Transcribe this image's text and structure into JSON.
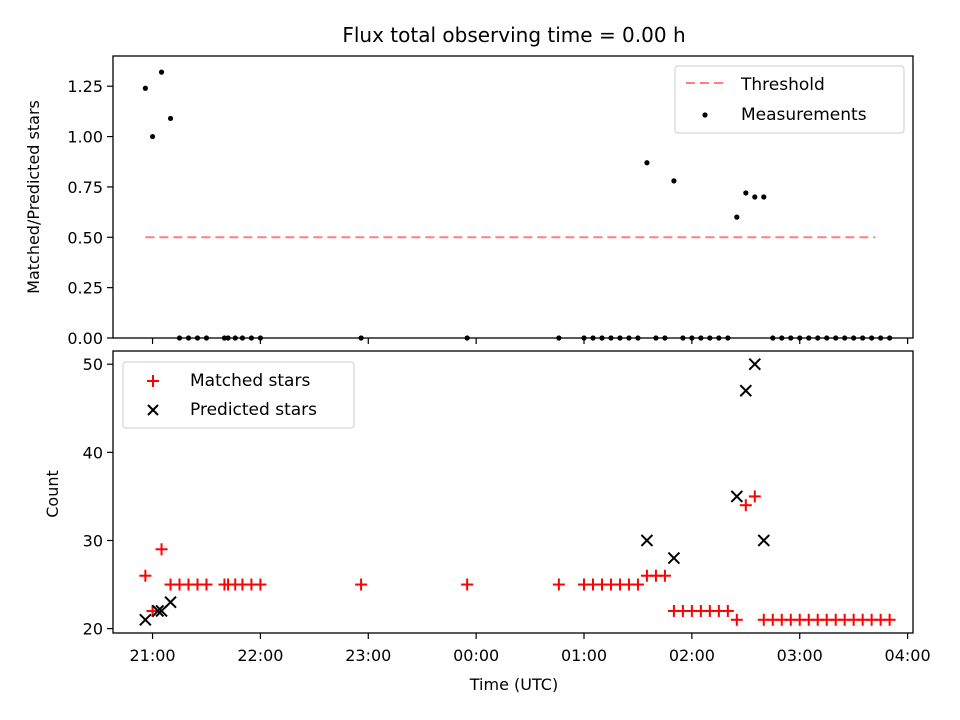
{
  "chart_data": [
    {
      "type": "scatter",
      "title": "Flux total observing time = 0.00 h",
      "xlabel": "",
      "ylabel": "Matched/Predicted stars",
      "ylim": [
        0,
        1.4
      ],
      "yticks": [
        0.0,
        0.25,
        0.5,
        0.75,
        1.0,
        1.25
      ],
      "ytick_labels": [
        "0.00",
        "0.25",
        "0.50",
        "0.75",
        "1.00",
        "1.25"
      ],
      "grid": false,
      "legend_position": "top-right",
      "threshold": {
        "name": "Threshold",
        "value": 0.5,
        "x_range": [
          "20:56",
          "03:42"
        ],
        "color": "#ff7f7f"
      },
      "series": [
        {
          "name": "Measurements",
          "color": "#000000",
          "x": [
            "20:56",
            "21:00",
            "21:05",
            "21:10",
            "21:15",
            "21:20",
            "21:25",
            "21:30",
            "21:40",
            "21:42",
            "21:46",
            "21:50",
            "21:55",
            "22:00",
            "22:56",
            "23:55",
            "00:46",
            "01:00",
            "01:05",
            "01:10",
            "01:15",
            "01:20",
            "01:25",
            "01:30",
            "01:35",
            "01:40",
            "01:45",
            "01:50",
            "01:55",
            "02:00",
            "02:05",
            "02:10",
            "02:15",
            "02:20",
            "02:25",
            "02:30",
            "02:35",
            "02:40",
            "02:45",
            "02:50",
            "02:55",
            "03:00",
            "03:05",
            "03:10",
            "03:15",
            "03:20",
            "03:25",
            "03:30",
            "03:35",
            "03:40",
            "03:45",
            "03:50"
          ],
          "y": [
            1.24,
            1.0,
            1.32,
            1.09,
            0,
            0,
            0,
            0,
            0,
            0,
            0,
            0,
            0,
            0,
            0,
            0,
            0,
            0,
            0,
            0,
            0,
            0,
            0,
            0,
            0.87,
            0,
            0,
            0.78,
            0,
            0,
            0,
            0,
            0,
            0,
            0.6,
            0.72,
            0.7,
            0.7,
            0,
            0,
            0,
            0,
            0,
            0,
            0,
            0,
            0,
            0,
            0,
            0,
            0,
            0
          ]
        }
      ]
    },
    {
      "type": "scatter",
      "title": "",
      "xlabel": "Time (UTC)",
      "ylabel": "Count",
      "ylim": [
        19.5,
        51.5
      ],
      "yticks": [
        20,
        30,
        40,
        50
      ],
      "ytick_labels": [
        "20",
        "30",
        "40",
        "50"
      ],
      "xlim": [
        "20:38",
        "04:03"
      ],
      "xticks": [
        "21:00",
        "22:00",
        "23:00",
        "00:00",
        "01:00",
        "02:00",
        "03:00",
        "04:00"
      ],
      "grid": false,
      "legend_position": "top-left",
      "series": [
        {
          "name": "Matched stars",
          "color": "#ff0000",
          "marker": "+",
          "x": [
            "20:56",
            "21:00",
            "21:05",
            "21:10",
            "21:15",
            "21:20",
            "21:25",
            "21:30",
            "21:40",
            "21:42",
            "21:46",
            "21:50",
            "21:55",
            "22:00",
            "22:56",
            "23:55",
            "00:46",
            "01:00",
            "01:05",
            "01:10",
            "01:15",
            "01:20",
            "01:25",
            "01:30",
            "01:35",
            "01:40",
            "01:45",
            "01:50",
            "01:55",
            "02:00",
            "02:05",
            "02:10",
            "02:15",
            "02:20",
            "02:25",
            "02:30",
            "02:35",
            "02:40",
            "02:45",
            "02:50",
            "02:55",
            "03:00",
            "03:05",
            "03:10",
            "03:15",
            "03:20",
            "03:25",
            "03:30",
            "03:35",
            "03:40",
            "03:45",
            "03:50"
          ],
          "y": [
            26,
            22,
            29,
            25,
            25,
            25,
            25,
            25,
            25,
            25,
            25,
            25,
            25,
            25,
            25,
            25,
            25,
            25,
            25,
            25,
            25,
            25,
            25,
            25,
            26,
            26,
            26,
            22,
            22,
            22,
            22,
            22,
            22,
            22,
            21,
            34,
            35,
            21,
            21,
            21,
            21,
            21,
            21,
            21,
            21,
            21,
            21,
            21,
            21,
            21,
            21,
            21
          ]
        },
        {
          "name": "Predicted stars",
          "color": "#000000",
          "marker": "x",
          "x": [
            "20:56",
            "21:03",
            "21:05",
            "21:10",
            "01:35",
            "01:50",
            "02:25",
            "02:30",
            "02:35",
            "02:40"
          ],
          "y": [
            21,
            22,
            22,
            23,
            30,
            28,
            35,
            47,
            50,
            30
          ]
        }
      ]
    }
  ],
  "legend_top": {
    "threshold_label": "Threshold",
    "measurements_label": "Measurements"
  },
  "legend_bottom": {
    "matched_label": "Matched stars",
    "predicted_label": "Predicted stars"
  }
}
